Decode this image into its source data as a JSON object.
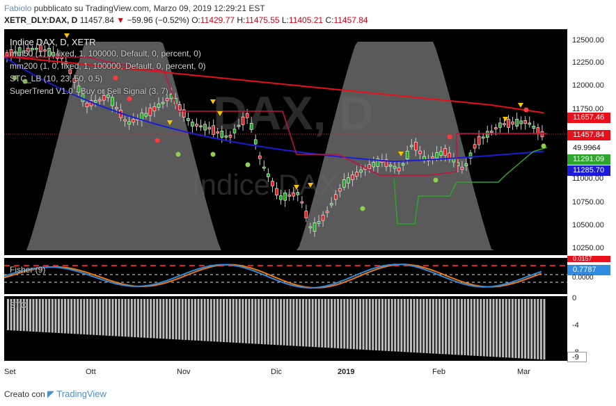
{
  "header": {
    "user": "Fabiolo",
    "published_text": "pubblicato su TradingView.com, Marzo 09, 2019 12:29:21 EST",
    "symbol": "XETR_DLY:DAX, D",
    "last": "11457.84",
    "change": "−59.96 (−0.52%)",
    "open_label": "O:",
    "open": "11429.77",
    "high_label": "H:",
    "high": "11475.55",
    "low_label": "L:",
    "low": "11405.21",
    "close_label": "C:",
    "close": "11457.84"
  },
  "legend": {
    "title": "Indice DAX, D, XETR",
    "mm50": "mm50 (1, 0, fixed, 1, 100000, Default, 0, percent, 0)",
    "mm200": "mm200 (1, 0, fixed, 1, 100000, Default, 0, percent, 0)",
    "stc": "STC_LB (10, 23, 50, 0.5)",
    "supertrend": "SuperTrend V1.0 - Buy or Sell Signal (3, 7)",
    "fisher": "Fisher (9)",
    "stc_pane": "STC"
  },
  "watermark": {
    "symbol": "DAX, D",
    "name": "Indice DAX"
  },
  "price_axis": [
    "12500.00",
    "12250.00",
    "12000.00",
    "11750.00",
    "11000.00",
    "10750.00",
    "10500.00",
    "10250.00"
  ],
  "price_tags": {
    "mm200": "11657.46",
    "last": "11457.84",
    "stc": "49.9964",
    "supertrend": "11291.09",
    "mm50": "11285.70"
  },
  "fisher_axis": {
    "top_tag": "0.0157",
    "value": "0.7787",
    "bottom": "0.0000"
  },
  "stc_axis": [
    "0",
    "-4",
    "-8"
  ],
  "stc_tag": "-9",
  "time_axis": [
    "Set",
    "Ott",
    "Nov",
    "Dic",
    "2019",
    "Feb",
    "Mar"
  ],
  "footer": {
    "created_with": "Creato con",
    "brand": "TradingView"
  },
  "colors": {
    "mm200": "#e8101a",
    "mm50": "#1c1cd8",
    "supertrend": "#2fa52f",
    "up": "#22a822",
    "down": "#e02020",
    "fisher_blue": "#2f8ce0",
    "fisher_orange": "#f07a10",
    "signal_sell": "#ff3b3b",
    "signal_buy": "#8fd14f",
    "signal_warn": "#f5c400"
  }
}
